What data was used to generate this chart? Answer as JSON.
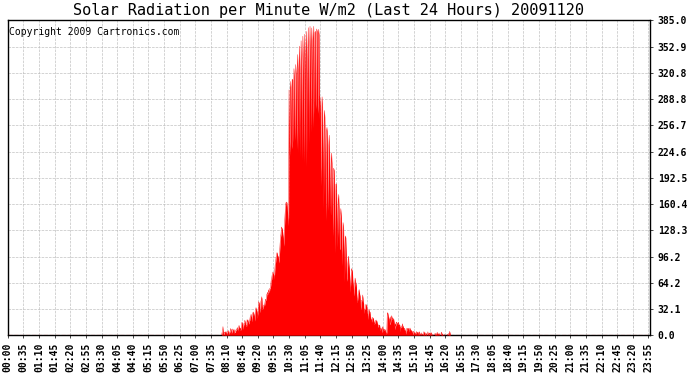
{
  "title": "Solar Radiation per Minute W/m2 (Last 24 Hours) 20091120",
  "copyright_text": "Copyright 2009 Cartronics.com",
  "yticks": [
    0.0,
    32.1,
    64.2,
    96.2,
    128.3,
    160.4,
    192.5,
    224.6,
    256.7,
    288.8,
    320.8,
    352.9,
    385.0
  ],
  "ymin": 0.0,
  "ymax": 385.0,
  "bar_color": "#FF0000",
  "background_color": "#FFFFFF",
  "plot_bg_color": "#FFFFFF",
  "grid_color": "#BBBBBB",
  "dashed_line_color": "#FF0000",
  "title_fontsize": 11,
  "copyright_fontsize": 7,
  "tick_fontsize": 7,
  "xtick_step": 35
}
